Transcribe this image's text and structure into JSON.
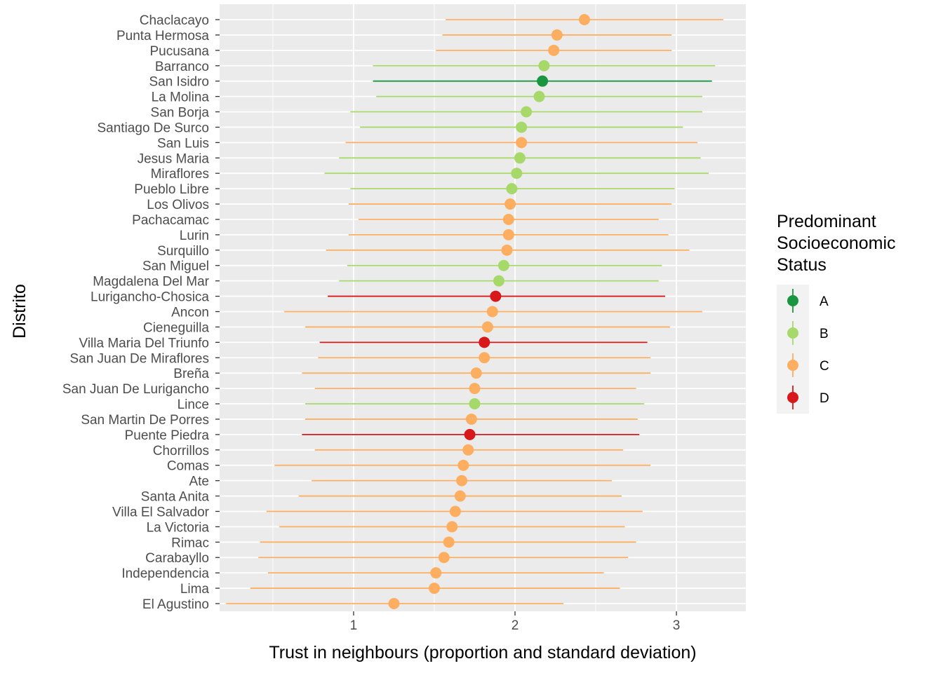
{
  "chart_data": {
    "type": "scatter",
    "orientation": "horizontal-dot-errorbar",
    "xlabel": "Trust in neighbours (proportion and standard deviation)",
    "ylabel": "Distrito",
    "xlim": [
      0.17,
      3.43
    ],
    "x_ticks": [
      1,
      2,
      3
    ],
    "grid": true,
    "legend_position": "right",
    "legend_title": [
      "Predominant",
      "Socioeconomic",
      "Status"
    ],
    "legend": [
      {
        "key": "A",
        "label": "A",
        "color": "#1a9641"
      },
      {
        "key": "B",
        "label": "B",
        "color": "#a6d96a"
      },
      {
        "key": "C",
        "label": "C",
        "color": "#fdae61"
      },
      {
        "key": "D",
        "label": "D",
        "color": "#d7191c"
      }
    ],
    "points": [
      {
        "district": "Chaclacayo",
        "status": "C",
        "mean": 2.43,
        "low": 1.57,
        "high": 3.29
      },
      {
        "district": "Punta Hermosa",
        "status": "C",
        "mean": 2.26,
        "low": 1.55,
        "high": 2.97
      },
      {
        "district": "Pucusana",
        "status": "C",
        "mean": 2.24,
        "low": 1.51,
        "high": 2.97
      },
      {
        "district": "Barranco",
        "status": "B",
        "mean": 2.18,
        "low": 1.12,
        "high": 3.24
      },
      {
        "district": "San Isidro",
        "status": "A",
        "mean": 2.17,
        "low": 1.12,
        "high": 3.22
      },
      {
        "district": "La Molina",
        "status": "B",
        "mean": 2.15,
        "low": 1.14,
        "high": 3.16
      },
      {
        "district": "San Borja",
        "status": "B",
        "mean": 2.07,
        "low": 0.98,
        "high": 3.16
      },
      {
        "district": "Santiago De Surco",
        "status": "B",
        "mean": 2.04,
        "low": 1.04,
        "high": 3.04
      },
      {
        "district": "San Luis",
        "status": "C",
        "mean": 2.04,
        "low": 0.95,
        "high": 3.13
      },
      {
        "district": "Jesus Maria",
        "status": "B",
        "mean": 2.03,
        "low": 0.91,
        "high": 3.15
      },
      {
        "district": "Miraflores",
        "status": "B",
        "mean": 2.01,
        "low": 0.82,
        "high": 3.2
      },
      {
        "district": "Pueblo Libre",
        "status": "B",
        "mean": 1.98,
        "low": 0.98,
        "high": 2.99
      },
      {
        "district": "Los Olivos",
        "status": "C",
        "mean": 1.97,
        "low": 0.97,
        "high": 2.97
      },
      {
        "district": "Pachacamac",
        "status": "C",
        "mean": 1.96,
        "low": 1.03,
        "high": 2.89
      },
      {
        "district": "Lurin",
        "status": "C",
        "mean": 1.96,
        "low": 0.97,
        "high": 2.95
      },
      {
        "district": "Surquillo",
        "status": "C",
        "mean": 1.95,
        "low": 0.83,
        "high": 3.08
      },
      {
        "district": "San Miguel",
        "status": "B",
        "mean": 1.93,
        "low": 0.96,
        "high": 2.91
      },
      {
        "district": "Magdalena Del Mar",
        "status": "B",
        "mean": 1.9,
        "low": 0.91,
        "high": 2.89
      },
      {
        "district": "Lurigancho-Chosica",
        "status": "D",
        "mean": 1.88,
        "low": 0.84,
        "high": 2.93
      },
      {
        "district": "Ancon",
        "status": "C",
        "mean": 1.86,
        "low": 0.57,
        "high": 3.16
      },
      {
        "district": "Cieneguilla",
        "status": "C",
        "mean": 1.83,
        "low": 0.7,
        "high": 2.96
      },
      {
        "district": "Villa Maria Del Triunfo",
        "status": "D",
        "mean": 1.81,
        "low": 0.79,
        "high": 2.82
      },
      {
        "district": "San Juan De Miraflores",
        "status": "C",
        "mean": 1.81,
        "low": 0.78,
        "high": 2.84
      },
      {
        "district": "Breña",
        "status": "C",
        "mean": 1.76,
        "low": 0.68,
        "high": 2.84
      },
      {
        "district": "San Juan De Lurigancho",
        "status": "C",
        "mean": 1.75,
        "low": 0.76,
        "high": 2.75
      },
      {
        "district": "Lince",
        "status": "B",
        "mean": 1.75,
        "low": 0.7,
        "high": 2.8
      },
      {
        "district": "San Martin De Porres",
        "status": "C",
        "mean": 1.73,
        "low": 0.7,
        "high": 2.76
      },
      {
        "district": "Puente Piedra",
        "status": "D",
        "mean": 1.72,
        "low": 0.68,
        "high": 2.77
      },
      {
        "district": "Chorrillos",
        "status": "C",
        "mean": 1.71,
        "low": 0.76,
        "high": 2.67
      },
      {
        "district": "Comas",
        "status": "C",
        "mean": 1.68,
        "low": 0.51,
        "high": 2.84
      },
      {
        "district": "Ate",
        "status": "C",
        "mean": 1.67,
        "low": 0.74,
        "high": 2.6
      },
      {
        "district": "Santa Anita",
        "status": "C",
        "mean": 1.66,
        "low": 0.66,
        "high": 2.66
      },
      {
        "district": "Villa El Salvador",
        "status": "C",
        "mean": 1.63,
        "low": 0.46,
        "high": 2.79
      },
      {
        "district": "La Victoria",
        "status": "C",
        "mean": 1.61,
        "low": 0.54,
        "high": 2.68
      },
      {
        "district": "Rimac",
        "status": "C",
        "mean": 1.59,
        "low": 0.42,
        "high": 2.75
      },
      {
        "district": "Carabayllo",
        "status": "C",
        "mean": 1.56,
        "low": 0.41,
        "high": 2.7
      },
      {
        "district": "Independencia",
        "status": "C",
        "mean": 1.51,
        "low": 0.47,
        "high": 2.55
      },
      {
        "district": "Lima",
        "status": "C",
        "mean": 1.5,
        "low": 0.36,
        "high": 2.65
      },
      {
        "district": "El Agustino",
        "status": "C",
        "mean": 1.25,
        "low": 0.21,
        "high": 2.3
      }
    ]
  }
}
